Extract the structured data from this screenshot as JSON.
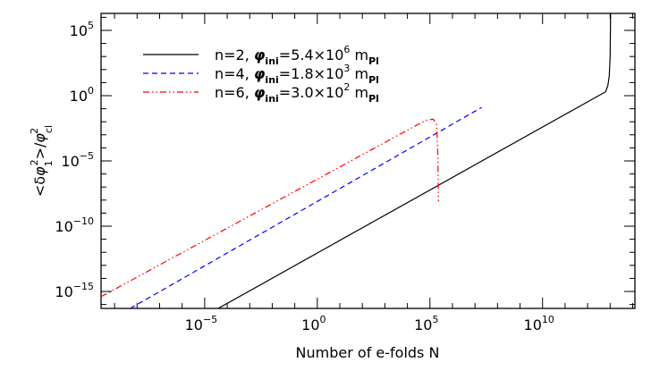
{
  "chart_data": {
    "type": "line",
    "title": "",
    "xlabel": "Number of e-folds N",
    "ylabel": "<δφ₁²>/φ_cl²",
    "x_scale": "log",
    "y_scale": "log",
    "xlim_log10": [
      -9.6,
      14.1
    ],
    "ylim_log10": [
      -16.3,
      6.3
    ],
    "x_ticks": [
      {
        "log10": -5,
        "base": "10",
        "exp": "−5"
      },
      {
        "log10": 0,
        "base": "10",
        "exp": "0"
      },
      {
        "log10": 5,
        "base": "10",
        "exp": "5"
      },
      {
        "log10": 10,
        "base": "10",
        "exp": "10"
      }
    ],
    "y_ticks": [
      {
        "log10": 5,
        "base": "10",
        "exp": "5"
      },
      {
        "log10": 0,
        "base": "10",
        "exp": "0"
      },
      {
        "log10": -5,
        "base": "10",
        "exp": "−5"
      },
      {
        "log10": -10,
        "base": "10",
        "exp": "−10"
      },
      {
        "log10": -15,
        "base": "10",
        "exp": "−15"
      }
    ],
    "grid": false,
    "legend_position": "top-left",
    "series": [
      {
        "n": "n=2",
        "phi": "=5.4×10",
        "phi_exp": "6",
        "color": "#000000",
        "dash": "solid",
        "points_log10": [
          [
            -4.4,
            -16.3
          ],
          [
            12.8,
            0.3
          ],
          [
            12.9,
            0.8
          ],
          [
            12.96,
            1.5
          ],
          [
            13.0,
            3
          ],
          [
            13.02,
            6.3
          ]
        ]
      },
      {
        "n": "n=4",
        "phi": "=1.8×10",
        "phi_exp": "3",
        "color": "#0000ff",
        "dash": "dashed",
        "points_log10": [
          [
            -8.3,
            -16.3
          ],
          [
            7.3,
            -0.9
          ]
        ]
      },
      {
        "n": "n=6",
        "phi": "=3.0×10",
        "phi_exp": "2",
        "color": "#ff0000",
        "dash": "dash-dot-dot",
        "points_log10": [
          [
            -9.6,
            -15.4
          ],
          [
            4.8,
            -1.9
          ],
          [
            5.15,
            -1.8
          ],
          [
            5.3,
            -2.2
          ],
          [
            5.35,
            -4.5
          ],
          [
            5.38,
            -8.1
          ]
        ]
      }
    ]
  }
}
